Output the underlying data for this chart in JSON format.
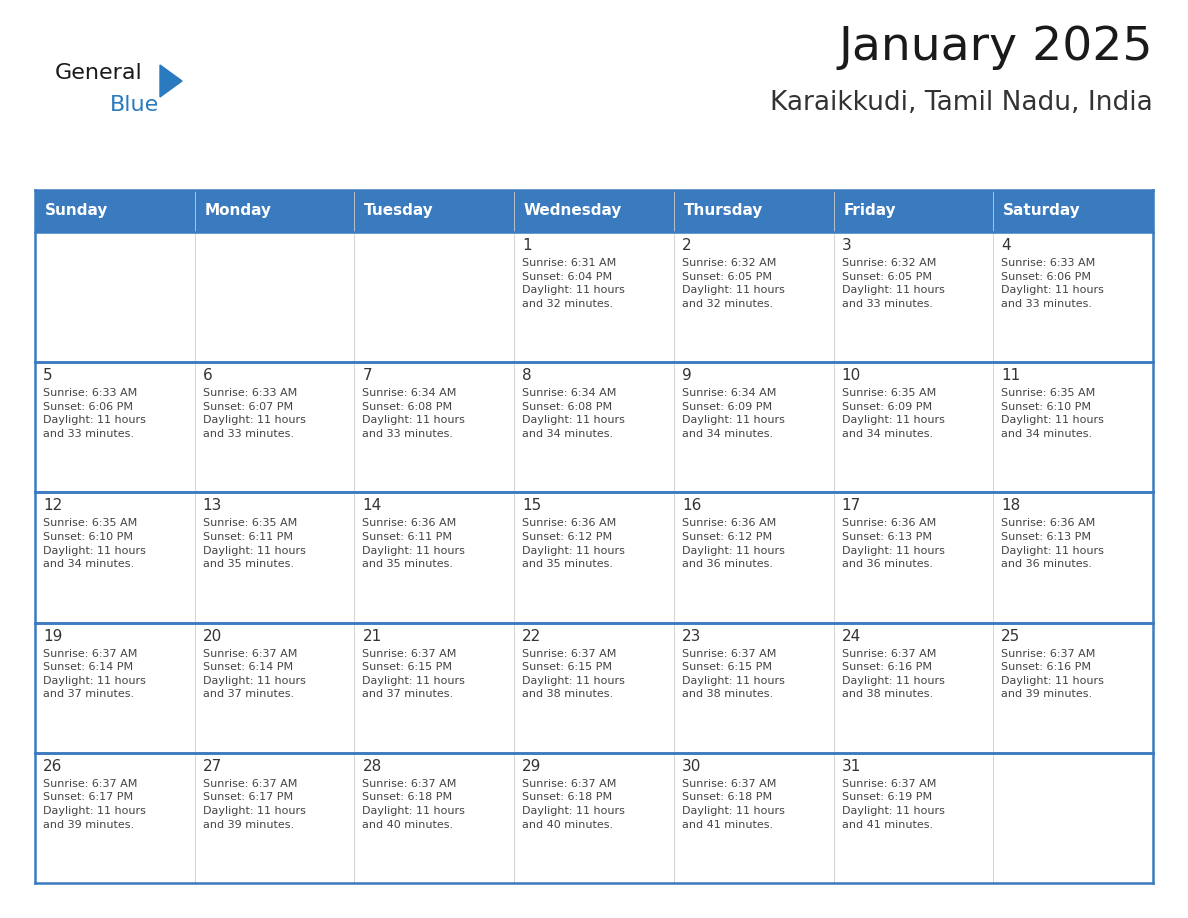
{
  "title": "January 2025",
  "subtitle": "Karaikkudi, Tamil Nadu, India",
  "days_of_week": [
    "Sunday",
    "Monday",
    "Tuesday",
    "Wednesday",
    "Thursday",
    "Friday",
    "Saturday"
  ],
  "header_bg": "#3a7abf",
  "header_text": "#ffffff",
  "border_color": "#3a7abf",
  "cell_border_color": "#aaaaaa",
  "title_color": "#1a1a1a",
  "subtitle_color": "#333333",
  "day_num_color": "#333333",
  "info_color": "#444444",
  "general_text_color": "#1a1a1a",
  "blue_text_color": "#2a7abf",
  "triangle_color": "#2a7abf",
  "calendar_data": [
    [
      {
        "day": "",
        "info": ""
      },
      {
        "day": "",
        "info": ""
      },
      {
        "day": "",
        "info": ""
      },
      {
        "day": "1",
        "info": "Sunrise: 6:31 AM\nSunset: 6:04 PM\nDaylight: 11 hours\nand 32 minutes."
      },
      {
        "day": "2",
        "info": "Sunrise: 6:32 AM\nSunset: 6:05 PM\nDaylight: 11 hours\nand 32 minutes."
      },
      {
        "day": "3",
        "info": "Sunrise: 6:32 AM\nSunset: 6:05 PM\nDaylight: 11 hours\nand 33 minutes."
      },
      {
        "day": "4",
        "info": "Sunrise: 6:33 AM\nSunset: 6:06 PM\nDaylight: 11 hours\nand 33 minutes."
      }
    ],
    [
      {
        "day": "5",
        "info": "Sunrise: 6:33 AM\nSunset: 6:06 PM\nDaylight: 11 hours\nand 33 minutes."
      },
      {
        "day": "6",
        "info": "Sunrise: 6:33 AM\nSunset: 6:07 PM\nDaylight: 11 hours\nand 33 minutes."
      },
      {
        "day": "7",
        "info": "Sunrise: 6:34 AM\nSunset: 6:08 PM\nDaylight: 11 hours\nand 33 minutes."
      },
      {
        "day": "8",
        "info": "Sunrise: 6:34 AM\nSunset: 6:08 PM\nDaylight: 11 hours\nand 34 minutes."
      },
      {
        "day": "9",
        "info": "Sunrise: 6:34 AM\nSunset: 6:09 PM\nDaylight: 11 hours\nand 34 minutes."
      },
      {
        "day": "10",
        "info": "Sunrise: 6:35 AM\nSunset: 6:09 PM\nDaylight: 11 hours\nand 34 minutes."
      },
      {
        "day": "11",
        "info": "Sunrise: 6:35 AM\nSunset: 6:10 PM\nDaylight: 11 hours\nand 34 minutes."
      }
    ],
    [
      {
        "day": "12",
        "info": "Sunrise: 6:35 AM\nSunset: 6:10 PM\nDaylight: 11 hours\nand 34 minutes."
      },
      {
        "day": "13",
        "info": "Sunrise: 6:35 AM\nSunset: 6:11 PM\nDaylight: 11 hours\nand 35 minutes."
      },
      {
        "day": "14",
        "info": "Sunrise: 6:36 AM\nSunset: 6:11 PM\nDaylight: 11 hours\nand 35 minutes."
      },
      {
        "day": "15",
        "info": "Sunrise: 6:36 AM\nSunset: 6:12 PM\nDaylight: 11 hours\nand 35 minutes."
      },
      {
        "day": "16",
        "info": "Sunrise: 6:36 AM\nSunset: 6:12 PM\nDaylight: 11 hours\nand 36 minutes."
      },
      {
        "day": "17",
        "info": "Sunrise: 6:36 AM\nSunset: 6:13 PM\nDaylight: 11 hours\nand 36 minutes."
      },
      {
        "day": "18",
        "info": "Sunrise: 6:36 AM\nSunset: 6:13 PM\nDaylight: 11 hours\nand 36 minutes."
      }
    ],
    [
      {
        "day": "19",
        "info": "Sunrise: 6:37 AM\nSunset: 6:14 PM\nDaylight: 11 hours\nand 37 minutes."
      },
      {
        "day": "20",
        "info": "Sunrise: 6:37 AM\nSunset: 6:14 PM\nDaylight: 11 hours\nand 37 minutes."
      },
      {
        "day": "21",
        "info": "Sunrise: 6:37 AM\nSunset: 6:15 PM\nDaylight: 11 hours\nand 37 minutes."
      },
      {
        "day": "22",
        "info": "Sunrise: 6:37 AM\nSunset: 6:15 PM\nDaylight: 11 hours\nand 38 minutes."
      },
      {
        "day": "23",
        "info": "Sunrise: 6:37 AM\nSunset: 6:15 PM\nDaylight: 11 hours\nand 38 minutes."
      },
      {
        "day": "24",
        "info": "Sunrise: 6:37 AM\nSunset: 6:16 PM\nDaylight: 11 hours\nand 38 minutes."
      },
      {
        "day": "25",
        "info": "Sunrise: 6:37 AM\nSunset: 6:16 PM\nDaylight: 11 hours\nand 39 minutes."
      }
    ],
    [
      {
        "day": "26",
        "info": "Sunrise: 6:37 AM\nSunset: 6:17 PM\nDaylight: 11 hours\nand 39 minutes."
      },
      {
        "day": "27",
        "info": "Sunrise: 6:37 AM\nSunset: 6:17 PM\nDaylight: 11 hours\nand 39 minutes."
      },
      {
        "day": "28",
        "info": "Sunrise: 6:37 AM\nSunset: 6:18 PM\nDaylight: 11 hours\nand 40 minutes."
      },
      {
        "day": "29",
        "info": "Sunrise: 6:37 AM\nSunset: 6:18 PM\nDaylight: 11 hours\nand 40 minutes."
      },
      {
        "day": "30",
        "info": "Sunrise: 6:37 AM\nSunset: 6:18 PM\nDaylight: 11 hours\nand 41 minutes."
      },
      {
        "day": "31",
        "info": "Sunrise: 6:37 AM\nSunset: 6:19 PM\nDaylight: 11 hours\nand 41 minutes."
      },
      {
        "day": "",
        "info": ""
      }
    ]
  ]
}
